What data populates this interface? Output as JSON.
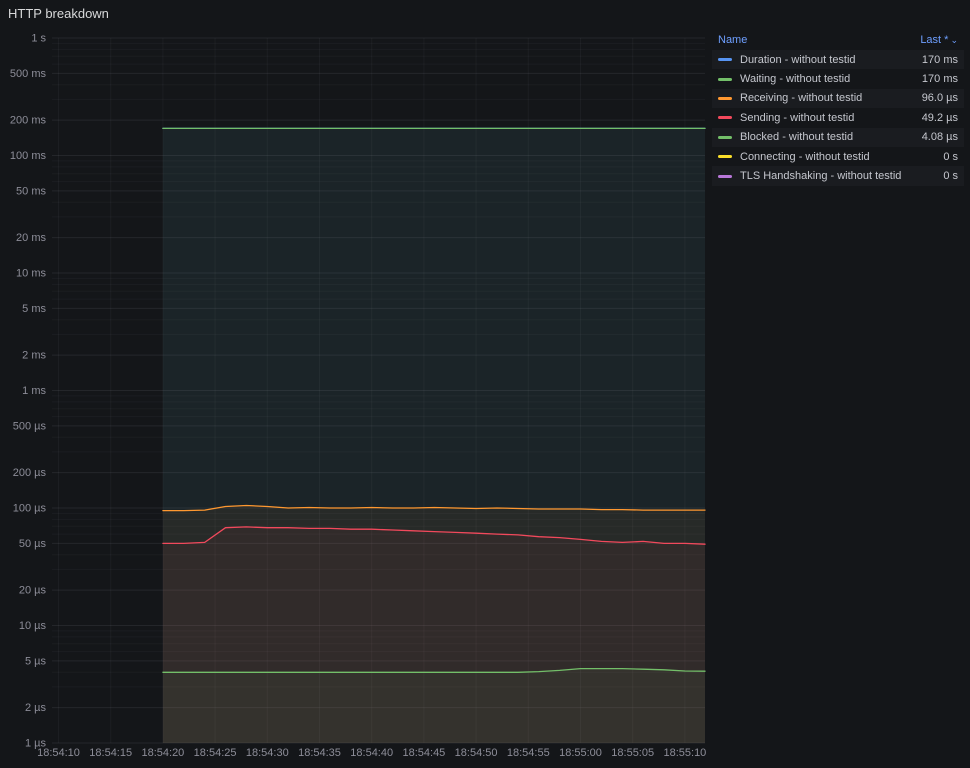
{
  "panel": {
    "title": "HTTP breakdown"
  },
  "legend": {
    "name_header": "Name",
    "value_header": "Last *",
    "sort_caret": "⌄",
    "rows": [
      {
        "label": "Duration - without testid",
        "value": "170 ms",
        "color": "#5794F2"
      },
      {
        "label": "Waiting - without testid",
        "value": "170 ms",
        "color": "#73BF69"
      },
      {
        "label": "Receiving - without testid",
        "value": "96.0 µs",
        "color": "#FF9830"
      },
      {
        "label": "Sending - without testid",
        "value": "49.2 µs",
        "color": "#F2495C"
      },
      {
        "label": "Blocked - without testid",
        "value": "4.08 µs",
        "color": "#73BF69"
      },
      {
        "label": "Connecting - without testid",
        "value": "0 s",
        "color": "#FADE2A"
      },
      {
        "label": "TLS Handshaking - without testid",
        "value": "0 s",
        "color": "#B877D9"
      }
    ]
  },
  "chart_data": {
    "type": "line",
    "title": "HTTP breakdown",
    "legend_position": "right-table",
    "grid": true,
    "y_axis": {
      "scale": "log10",
      "unit": "duration-seconds",
      "min": 1e-06,
      "max": 1,
      "ticks": [
        {
          "label": "1 s",
          "value": 1
        },
        {
          "label": "500 ms",
          "value": 0.5
        },
        {
          "label": "200 ms",
          "value": 0.2
        },
        {
          "label": "100 ms",
          "value": 0.1
        },
        {
          "label": "50 ms",
          "value": 0.05
        },
        {
          "label": "20 ms",
          "value": 0.02
        },
        {
          "label": "10 ms",
          "value": 0.01
        },
        {
          "label": "5 ms",
          "value": 0.005
        },
        {
          "label": "2 ms",
          "value": 0.002
        },
        {
          "label": "1 ms",
          "value": 0.001
        },
        {
          "label": "500 µs",
          "value": 0.0005
        },
        {
          "label": "200 µs",
          "value": 0.0002
        },
        {
          "label": "100 µs",
          "value": 0.0001
        },
        {
          "label": "50 µs",
          "value": 5e-05
        },
        {
          "label": "20 µs",
          "value": 2e-05
        },
        {
          "label": "10 µs",
          "value": 1e-05
        },
        {
          "label": "5 µs",
          "value": 5e-06
        },
        {
          "label": "2 µs",
          "value": 2e-06
        },
        {
          "label": "1 µs",
          "value": 1e-06
        }
      ]
    },
    "x_axis": {
      "labels": [
        "18:54:10",
        "18:54:15",
        "18:54:20",
        "18:54:25",
        "18:54:30",
        "18:54:35",
        "18:54:40",
        "18:54:45",
        "18:54:50",
        "18:54:55",
        "18:55:00",
        "18:55:05",
        "18:55:10"
      ],
      "tick_seconds": [
        0,
        5,
        10,
        15,
        20,
        25,
        30,
        35,
        40,
        45,
        50,
        55,
        60
      ]
    },
    "x_offsets_s": [
      10,
      12,
      14,
      16,
      18,
      20,
      22,
      24,
      26,
      28,
      30,
      32,
      34,
      36,
      38,
      40,
      42,
      44,
      46,
      48,
      50,
      52,
      54,
      56,
      58,
      60,
      62
    ],
    "series": [
      {
        "name": "Duration - without testid",
        "color": "#5794F2",
        "last": "170 ms",
        "values_us": [
          170000,
          170000,
          170000,
          170000,
          170000,
          170000,
          170000,
          170000,
          170000,
          170000,
          170000,
          170000,
          170000,
          170000,
          170000,
          170000,
          170000,
          170000,
          170000,
          170000,
          170000,
          170000,
          170000,
          170000,
          170000,
          170000,
          170000
        ]
      },
      {
        "name": "Waiting - without testid",
        "color": "#73BF69",
        "last": "170 ms",
        "values_us": [
          170000,
          170000,
          170000,
          170000,
          170000,
          170000,
          170000,
          170000,
          170000,
          170000,
          170000,
          170000,
          170000,
          170000,
          170000,
          170000,
          170000,
          170000,
          170000,
          170000,
          170000,
          170000,
          170000,
          170000,
          170000,
          170000,
          170000
        ]
      },
      {
        "name": "Receiving - without testid",
        "color": "#FF9830",
        "last": "96.0 µs",
        "values_us": [
          95,
          95,
          96,
          103,
          105,
          103,
          100,
          101,
          100,
          100,
          101,
          100,
          100,
          101,
          100,
          99,
          100,
          99,
          98,
          98,
          98,
          97,
          97,
          96,
          96,
          96,
          96
        ]
      },
      {
        "name": "Sending - without testid",
        "color": "#F2495C",
        "last": "49.2 µs",
        "values_us": [
          50,
          50,
          51,
          68,
          69,
          68,
          68,
          67,
          67,
          66,
          66,
          65,
          64,
          63,
          62,
          61,
          60,
          59,
          57,
          56,
          54,
          52,
          51,
          52,
          50,
          50,
          49.2
        ]
      },
      {
        "name": "Blocked - without testid",
        "color": "#73BF69",
        "last": "4.08 µs",
        "values_us": [
          4.0,
          4.0,
          4.0,
          4.0,
          4.0,
          4.0,
          4.0,
          4.0,
          4.0,
          4.0,
          4.0,
          4.0,
          4.0,
          4.0,
          4.0,
          4.0,
          4.0,
          4.0,
          4.05,
          4.15,
          4.3,
          4.3,
          4.3,
          4.25,
          4.2,
          4.1,
          4.08
        ]
      },
      {
        "name": "Connecting - without testid",
        "color": "#FADE2A",
        "last": "0 s",
        "values_us": []
      },
      {
        "name": "TLS Handshaking - without testid",
        "color": "#B877D9",
        "last": "0 s",
        "values_us": []
      }
    ]
  }
}
